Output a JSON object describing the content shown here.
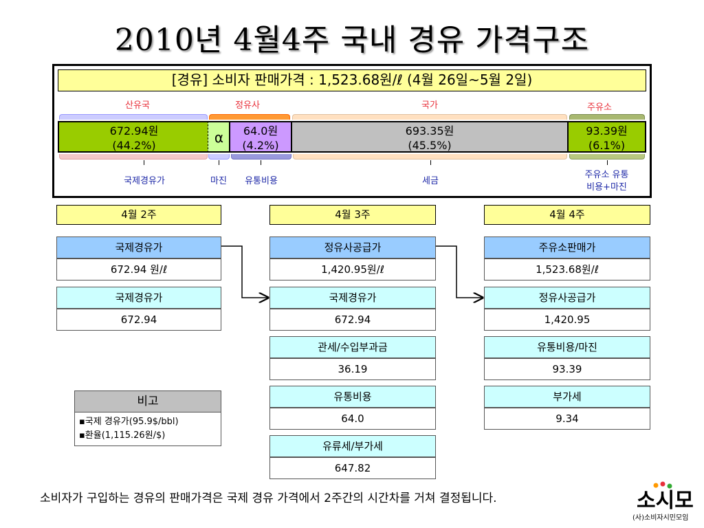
{
  "title": "2010년 4월4주 국내 경유 가격구조",
  "price_box": {
    "title": "[경유] 소비자 판매가격 : 1,523.68원/ℓ (4월 26일~5월 2일)",
    "top_labels": {
      "refiner_country": "산유국",
      "refinery": "정유사",
      "government": "국가",
      "gas_station": "주유소"
    },
    "segments": {
      "intl": {
        "line1": "672.94원",
        "line2": "(44.2%)",
        "color": "#99cc00"
      },
      "alpha": {
        "symbol": "α",
        "color": "#ccff99"
      },
      "distribution": {
        "line1": "64.0원",
        "line2": "(4.2%)",
        "color": "#cc99ff"
      },
      "tax": {
        "line1": "693.35원",
        "line2": "(45.5%)",
        "color": "#c0c0c0"
      },
      "station": {
        "line1": "93.39원",
        "line2": "(6.1%)",
        "color": "#99cc00"
      }
    },
    "bottom_labels": {
      "intl": "국제경유가",
      "margin": "마진",
      "distribution": "유통비용",
      "tax": "세금",
      "station_line1": "주유소 유통",
      "station_line2": "비용+마진"
    }
  },
  "weeks": {
    "w2": {
      "header": "4월 2주",
      "main_label": "국제경유가",
      "main_value": "672.94 원/ℓ",
      "items": [
        {
          "label": "국제경유가",
          "value": "672.94"
        }
      ]
    },
    "w3": {
      "header": "4월 3주",
      "main_label": "정유사공급가",
      "main_value": "1,420.95원/ℓ",
      "items": [
        {
          "label": "국제경유가",
          "value": "672.94"
        },
        {
          "label": "관세/수입부과금",
          "value": "36.19"
        },
        {
          "label": "유통비용",
          "value": "64.0"
        },
        {
          "label": "유류세/부가세",
          "value": "647.82"
        }
      ]
    },
    "w4": {
      "header": "4월 4주",
      "main_label": "주유소판매가",
      "main_value": "1,523.68원/ℓ",
      "items": [
        {
          "label": "정유사공급가",
          "value": "1,420.95"
        },
        {
          "label": "유통비용/마진",
          "value": "93.39"
        },
        {
          "label": "부가세",
          "value": "9.34"
        }
      ]
    }
  },
  "note": {
    "title": "비고",
    "line1": "▪국제 경유가(95.9$/bbl)",
    "line2": "▪환율(1,115.26원/$)"
  },
  "footer": "소비자가 구입하는 경유의 판매가격은 국제 경유 가격에서 2주간의 시간차를 거쳐 결정됩니다.",
  "logo": {
    "mark": "소시모",
    "text": "(사)소비자시민모임"
  }
}
